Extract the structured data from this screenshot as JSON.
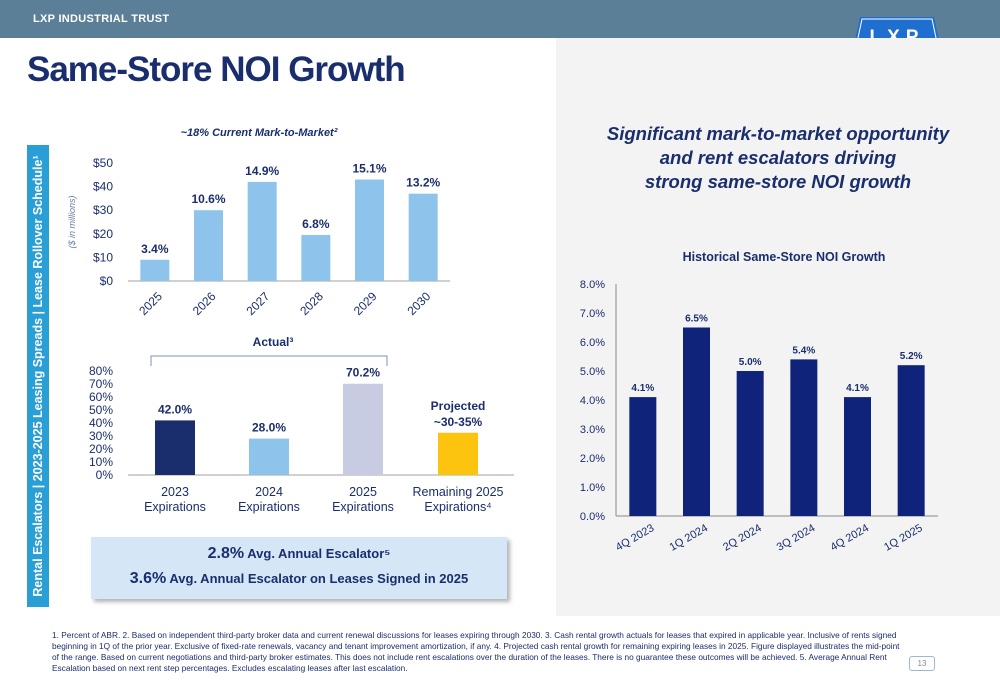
{
  "header": {
    "company": "LXP INDUSTRIAL TRUST",
    "logo_text": "LXP",
    "page_title": "Same-Store NOI Growth"
  },
  "sidebar": {
    "text": "Rental Escalators | 2023-2025 Leasing Spreads | Lease Rollover Schedule¹"
  },
  "headline": {
    "line1": "Significant mark-to-market opportunity",
    "line2": "and rent escalators driving",
    "line3": "strong same-store NOI growth"
  },
  "escalators": {
    "value1": "2.8%",
    "label1": " Avg. Annual Escalator⁵",
    "value2": "3.6%",
    "label2": " Avg. Annual Escalator on Leases Signed in 2025"
  },
  "footnotes": "1. Percent of ABR. 2. Based on independent third-party broker data and current renewal discussions for leases expiring through 2030. 3. Cash rental growth actuals for leases that expired in applicable year. Inclusive of rents signed beginning in 1Q of the prior year. Exclusive of fixed-rate renewals, vacancy and tenant improvement amortization, if any. 4. Projected cash rental growth for remaining expiring leases in 2025. Figure displayed illustrates the mid-point of the range. Based on current negotiations and third-party broker estimates. This does not include rent escalations over the duration of the leases. There is no guarantee these outcomes will be achieved. 5. Average Annual Rent Escalation based on next rent step percentages. Excludes escalating leases after last escalation.",
  "page_number": "13",
  "colors": {
    "navy": "#1a2e6e",
    "light_blue": "#8ec3ec",
    "lavender": "#c8cce3",
    "gold": "#fcc30f",
    "topbar": "#5a7f96",
    "sidebar": "#2a9fd6",
    "noi_bar": "#10237a"
  },
  "chart_data": [
    {
      "type": "bar",
      "title": "~18% Current Mark-to-Market²",
      "ylabel": "($ in millions)",
      "categories": [
        "2025",
        "2026",
        "2027",
        "2028",
        "2029",
        "2030"
      ],
      "values": [
        9,
        30,
        42,
        19.5,
        43,
        37
      ],
      "data_labels": [
        "3.4%",
        "10.6%",
        "14.9%",
        "6.8%",
        "15.1%",
        "13.2%"
      ],
      "ylim": [
        0,
        50
      ],
      "yticks": [
        "$0",
        "$10",
        "$20",
        "$30",
        "$40",
        "$50"
      ],
      "color": "#8ec3ec",
      "grid": false
    },
    {
      "type": "bar",
      "title": "Actual³",
      "categories": [
        [
          "2023",
          "Expirations"
        ],
        [
          "2024",
          "Expirations"
        ],
        [
          "2025",
          "Expirations"
        ],
        [
          "Remaining 2025",
          "Expirations⁴"
        ]
      ],
      "values": [
        42.0,
        28.0,
        70.2,
        32.5
      ],
      "data_labels": [
        "42.0%",
        "28.0%",
        "70.2%",
        "Projected\n~30-35%"
      ],
      "colors": [
        "#1a2e6e",
        "#8ec3ec",
        "#c8cce3",
        "#fcc30f"
      ],
      "ylim": [
        0,
        80
      ],
      "yticks": [
        "0%",
        "10%",
        "20%",
        "30%",
        "40%",
        "50%",
        "60%",
        "70%",
        "80%"
      ],
      "grid": false
    },
    {
      "type": "bar",
      "title": "Historical Same-Store NOI Growth",
      "categories": [
        "4Q 2023",
        "1Q 2024",
        "2Q 2024",
        "3Q 2024",
        "4Q 2024",
        "1Q 2025"
      ],
      "values": [
        4.1,
        6.5,
        5.0,
        5.4,
        4.1,
        5.2
      ],
      "data_labels": [
        "4.1%",
        "6.5%",
        "5.0%",
        "5.4%",
        "4.1%",
        "5.2%"
      ],
      "ylim": [
        0,
        8
      ],
      "yticks": [
        "0.0%",
        "1.0%",
        "2.0%",
        "3.0%",
        "4.0%",
        "5.0%",
        "6.0%",
        "7.0%",
        "8.0%"
      ],
      "color": "#10237a",
      "grid": false
    }
  ]
}
